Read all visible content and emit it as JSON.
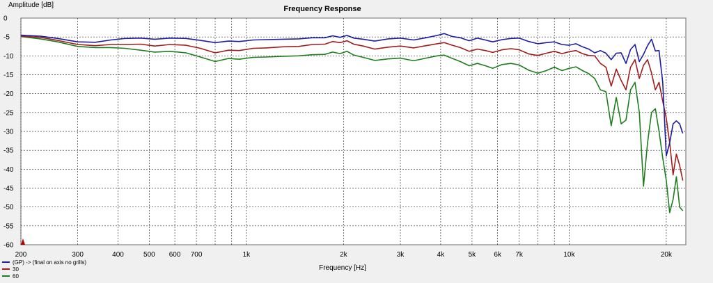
{
  "chart_data": {
    "type": "line",
    "title": "Frequency Response",
    "xlabel": "Frequency [Hz]",
    "ylabel": "Amplitude [dB]",
    "xscale": "log",
    "xlim": [
      200,
      23000
    ],
    "ylim": [
      -60,
      0
    ],
    "grid": true,
    "legend_position": "bottom-left",
    "x_tick_labels": [
      {
        "value": 200,
        "label": "200"
      },
      {
        "value": 300,
        "label": "300"
      },
      {
        "value": 400,
        "label": "400"
      },
      {
        "value": 500,
        "label": "500"
      },
      {
        "value": 600,
        "label": "600"
      },
      {
        "value": 700,
        "label": "700"
      },
      {
        "value": 1000,
        "label": "1k"
      },
      {
        "value": 2000,
        "label": "2k"
      },
      {
        "value": 3000,
        "label": "3k"
      },
      {
        "value": 4000,
        "label": "4k"
      },
      {
        "value": 5000,
        "label": "5k"
      },
      {
        "value": 6000,
        "label": "6k"
      },
      {
        "value": 7000,
        "label": "7k"
      },
      {
        "value": 10000,
        "label": "10k"
      },
      {
        "value": 20000,
        "label": "20k"
      }
    ],
    "x_gridlines": [
      200,
      300,
      400,
      500,
      600,
      700,
      800,
      900,
      1000,
      2000,
      3000,
      4000,
      5000,
      6000,
      7000,
      8000,
      9000,
      10000,
      20000
    ],
    "y_ticks": [
      0,
      -5,
      -10,
      -15,
      -20,
      -25,
      -30,
      -35,
      -40,
      -45,
      -50,
      -55,
      -60
    ],
    "series": [
      {
        "name": "(GP) -> (final on axis no grills)",
        "color": "#1c1ca0",
        "points": [
          [
            200,
            -4.5
          ],
          [
            230,
            -4.8
          ],
          [
            260,
            -5.4
          ],
          [
            300,
            -6.3
          ],
          [
            340,
            -6.4
          ],
          [
            380,
            -5.8
          ],
          [
            420,
            -5.4
          ],
          [
            470,
            -5.3
          ],
          [
            520,
            -5.6
          ],
          [
            580,
            -5.3
          ],
          [
            650,
            -5.4
          ],
          [
            720,
            -5.9
          ],
          [
            800,
            -6.5
          ],
          [
            880,
            -6.1
          ],
          [
            950,
            -6.2
          ],
          [
            1050,
            -5.8
          ],
          [
            1150,
            -5.7
          ],
          [
            1300,
            -5.6
          ],
          [
            1450,
            -5.5
          ],
          [
            1600,
            -5.2
          ],
          [
            1750,
            -5.2
          ],
          [
            1850,
            -4.7
          ],
          [
            1950,
            -5.1
          ],
          [
            2050,
            -4.6
          ],
          [
            2150,
            -5.3
          ],
          [
            2300,
            -5.6
          ],
          [
            2500,
            -6.1
          ],
          [
            2750,
            -5.5
          ],
          [
            3000,
            -5.3
          ],
          [
            3300,
            -5.8
          ],
          [
            3600,
            -5.2
          ],
          [
            3900,
            -4.6
          ],
          [
            4100,
            -4.1
          ],
          [
            4350,
            -4.9
          ],
          [
            4600,
            -5.2
          ],
          [
            4900,
            -6.0
          ],
          [
            5200,
            -5.3
          ],
          [
            5500,
            -5.8
          ],
          [
            5800,
            -6.3
          ],
          [
            6200,
            -5.7
          ],
          [
            6600,
            -5.4
          ],
          [
            7000,
            -5.3
          ],
          [
            7500,
            -6.2
          ],
          [
            8000,
            -6.8
          ],
          [
            8500,
            -6.5
          ],
          [
            9000,
            -6.3
          ],
          [
            9500,
            -7.0
          ],
          [
            10000,
            -7.2
          ],
          [
            10500,
            -6.8
          ],
          [
            11000,
            -7.6
          ],
          [
            11500,
            -8.2
          ],
          [
            12000,
            -9.2
          ],
          [
            12500,
            -8.6
          ],
          [
            13000,
            -9.3
          ],
          [
            13500,
            -11.0
          ],
          [
            14000,
            -9.3
          ],
          [
            14500,
            -9.2
          ],
          [
            15000,
            -12.0
          ],
          [
            15500,
            -8.3
          ],
          [
            16000,
            -7.0
          ],
          [
            16500,
            -11.5
          ],
          [
            17000,
            -9.6
          ],
          [
            17500,
            -7.3
          ],
          [
            18000,
            -5.6
          ],
          [
            18500,
            -8.7
          ],
          [
            19000,
            -8.6
          ],
          [
            19500,
            -17.0
          ],
          [
            20000,
            -36.5
          ],
          [
            20500,
            -33.0
          ],
          [
            21000,
            -28.0
          ],
          [
            21500,
            -27.2
          ],
          [
            22000,
            -28.0
          ],
          [
            22500,
            -30.5
          ]
        ]
      },
      {
        "name": "30",
        "color": "#a01c1c",
        "points": [
          [
            200,
            -4.8
          ],
          [
            230,
            -5.1
          ],
          [
            260,
            -5.9
          ],
          [
            300,
            -7.0
          ],
          [
            340,
            -7.3
          ],
          [
            380,
            -7.0
          ],
          [
            420,
            -7.0
          ],
          [
            470,
            -6.9
          ],
          [
            520,
            -7.4
          ],
          [
            580,
            -7.0
          ],
          [
            650,
            -7.2
          ],
          [
            720,
            -8.0
          ],
          [
            800,
            -9.2
          ],
          [
            880,
            -8.5
          ],
          [
            950,
            -8.6
          ],
          [
            1050,
            -8.0
          ],
          [
            1150,
            -7.9
          ],
          [
            1300,
            -7.6
          ],
          [
            1450,
            -7.5
          ],
          [
            1600,
            -7.0
          ],
          [
            1750,
            -6.9
          ],
          [
            1850,
            -6.2
          ],
          [
            1950,
            -6.5
          ],
          [
            2050,
            -6.0
          ],
          [
            2150,
            -6.9
          ],
          [
            2300,
            -7.4
          ],
          [
            2500,
            -8.2
          ],
          [
            2750,
            -7.7
          ],
          [
            3000,
            -7.4
          ],
          [
            3300,
            -7.9
          ],
          [
            3600,
            -7.3
          ],
          [
            3900,
            -6.8
          ],
          [
            4100,
            -6.5
          ],
          [
            4350,
            -7.2
          ],
          [
            4600,
            -7.8
          ],
          [
            4900,
            -8.8
          ],
          [
            5200,
            -8.2
          ],
          [
            5500,
            -8.6
          ],
          [
            5800,
            -9.1
          ],
          [
            6200,
            -8.4
          ],
          [
            6600,
            -8.1
          ],
          [
            7000,
            -8.4
          ],
          [
            7500,
            -9.5
          ],
          [
            8000,
            -9.9
          ],
          [
            8500,
            -9.3
          ],
          [
            9000,
            -8.8
          ],
          [
            9500,
            -9.4
          ],
          [
            10000,
            -8.9
          ],
          [
            10500,
            -8.6
          ],
          [
            11000,
            -9.4
          ],
          [
            11500,
            -9.9
          ],
          [
            12000,
            -10.0
          ],
          [
            12500,
            -12.0
          ],
          [
            13000,
            -13.0
          ],
          [
            13500,
            -18.0
          ],
          [
            14000,
            -13.5
          ],
          [
            14500,
            -16.5
          ],
          [
            15000,
            -19.0
          ],
          [
            15500,
            -13.0
          ],
          [
            16000,
            -11.0
          ],
          [
            16500,
            -16.0
          ],
          [
            17000,
            -12.5
          ],
          [
            17500,
            -11.0
          ],
          [
            18000,
            -14.5
          ],
          [
            18500,
            -19.0
          ],
          [
            19000,
            -17.0
          ],
          [
            19500,
            -22.0
          ],
          [
            20000,
            -26.5
          ],
          [
            20500,
            -33.0
          ],
          [
            21000,
            -41.5
          ],
          [
            21500,
            -36.0
          ],
          [
            22000,
            -39.0
          ],
          [
            22500,
            -43.0
          ]
        ]
      },
      {
        "name": "60",
        "color": "#1e7e1e",
        "points": [
          [
            200,
            -4.9
          ],
          [
            230,
            -5.5
          ],
          [
            260,
            -6.3
          ],
          [
            300,
            -7.5
          ],
          [
            340,
            -7.8
          ],
          [
            380,
            -7.8
          ],
          [
            420,
            -8.0
          ],
          [
            470,
            -8.5
          ],
          [
            520,
            -9.0
          ],
          [
            580,
            -8.8
          ],
          [
            650,
            -9.2
          ],
          [
            720,
            -10.3
          ],
          [
            800,
            -11.5
          ],
          [
            880,
            -10.7
          ],
          [
            950,
            -10.9
          ],
          [
            1050,
            -10.4
          ],
          [
            1150,
            -10.3
          ],
          [
            1300,
            -10.1
          ],
          [
            1450,
            -10.0
          ],
          [
            1600,
            -9.7
          ],
          [
            1750,
            -9.6
          ],
          [
            1850,
            -9.0
          ],
          [
            1950,
            -9.4
          ],
          [
            2050,
            -8.8
          ],
          [
            2150,
            -9.8
          ],
          [
            2300,
            -10.4
          ],
          [
            2500,
            -11.2
          ],
          [
            2750,
            -10.8
          ],
          [
            3000,
            -10.6
          ],
          [
            3300,
            -11.3
          ],
          [
            3600,
            -10.6
          ],
          [
            3900,
            -10.0
          ],
          [
            4100,
            -9.8
          ],
          [
            4350,
            -10.7
          ],
          [
            4600,
            -11.5
          ],
          [
            4900,
            -12.6
          ],
          [
            5200,
            -12.0
          ],
          [
            5500,
            -12.6
          ],
          [
            5800,
            -13.3
          ],
          [
            6200,
            -12.3
          ],
          [
            6600,
            -12.0
          ],
          [
            7000,
            -12.4
          ],
          [
            7500,
            -13.8
          ],
          [
            8000,
            -14.6
          ],
          [
            8500,
            -13.9
          ],
          [
            9000,
            -13.0
          ],
          [
            9500,
            -13.9
          ],
          [
            10000,
            -13.3
          ],
          [
            10500,
            -12.9
          ],
          [
            11000,
            -13.9
          ],
          [
            11500,
            -14.7
          ],
          [
            12000,
            -16.0
          ],
          [
            12500,
            -19.0
          ],
          [
            13000,
            -19.5
          ],
          [
            13500,
            -28.5
          ],
          [
            14000,
            -21.0
          ],
          [
            14500,
            -28.0
          ],
          [
            15000,
            -27.0
          ],
          [
            15500,
            -19.0
          ],
          [
            16000,
            -17.0
          ],
          [
            16500,
            -25.0
          ],
          [
            17000,
            -44.5
          ],
          [
            17500,
            -33.0
          ],
          [
            18000,
            -25.0
          ],
          [
            18500,
            -24.0
          ],
          [
            19000,
            -30.0
          ],
          [
            19500,
            -37.0
          ],
          [
            20000,
            -43.0
          ],
          [
            20500,
            -51.5
          ],
          [
            21000,
            -48.0
          ],
          [
            21500,
            -42.0
          ],
          [
            22000,
            -50.0
          ],
          [
            22500,
            -51.0
          ]
        ]
      }
    ]
  }
}
